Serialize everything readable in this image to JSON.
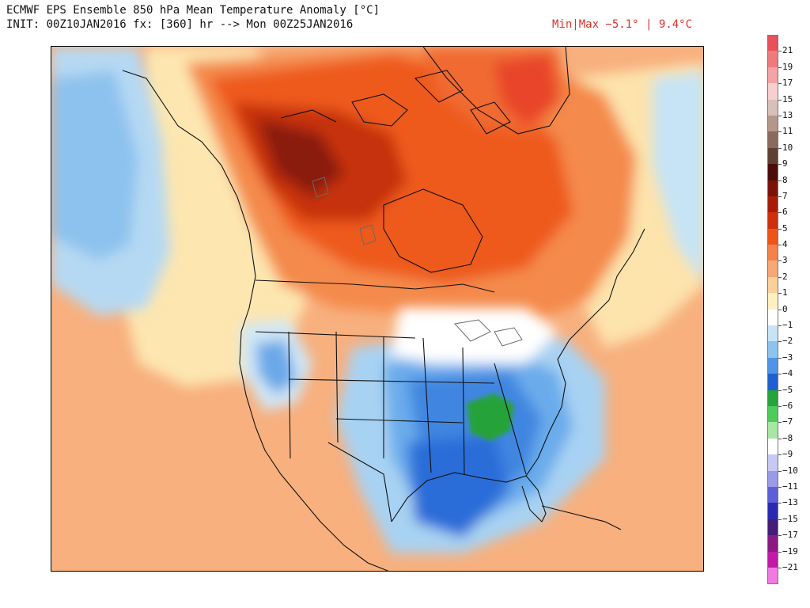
{
  "header": {
    "title_line1": "ECMWF EPS Ensemble 850 hPa Mean Temperature Anomaly [°C]",
    "title_line2": "INIT: 00Z10JAN2016 fx: [360] hr --> Mon 00Z25JAN2016",
    "minmax": "Min|Max −5.1° | 9.4°C"
  },
  "map": {
    "region": "North America",
    "variable": "850 hPa mean temperature anomaly",
    "unit": "°C"
  },
  "legend": {
    "levels": [
      {
        "label": "21",
        "color": "#e8505a"
      },
      {
        "label": "19",
        "color": "#ee7a7e"
      },
      {
        "label": "17",
        "color": "#f4a2a4"
      },
      {
        "label": "15",
        "color": "#f6d0ce"
      },
      {
        "label": "13",
        "color": "#d8c0b8"
      },
      {
        "label": "11",
        "color": "#b4978a"
      },
      {
        "label": "10",
        "color": "#8a6a5c"
      },
      {
        "label": "9",
        "color": "#5e3f34"
      },
      {
        "label": "8",
        "color": "#4a0d08"
      },
      {
        "label": "7",
        "color": "#7a1208"
      },
      {
        "label": "6",
        "color": "#a61c08"
      },
      {
        "label": "5",
        "color": "#cf300c"
      },
      {
        "label": "4",
        "color": "#ee5418"
      },
      {
        "label": "3",
        "color": "#f4824a"
      },
      {
        "label": "2",
        "color": "#f7a874"
      },
      {
        "label": "1",
        "color": "#fbd098"
      },
      {
        "label": "0",
        "color": "#fff1bf"
      },
      {
        "label": "−1",
        "color": "#ffffff"
      },
      {
        "label": "−2",
        "color": "#c6e4f5"
      },
      {
        "label": "−3",
        "color": "#8cc4ee"
      },
      {
        "label": "−4",
        "color": "#4f94e6"
      },
      {
        "label": "−5",
        "color": "#1f5fcf"
      },
      {
        "label": "−6",
        "color": "#25a33c"
      },
      {
        "label": "−7",
        "color": "#4ecb5a"
      },
      {
        "label": "−8",
        "color": "#a8e6a4"
      },
      {
        "label": "−9",
        "color": "#ffffff"
      },
      {
        "label": "−10",
        "color": "#c8c8f4"
      },
      {
        "label": "−11",
        "color": "#9a9aea"
      },
      {
        "label": "−13",
        "color": "#5e5ed8"
      },
      {
        "label": "−15",
        "color": "#2a2ab0"
      },
      {
        "label": "−17",
        "color": "#441c7a"
      },
      {
        "label": "−19",
        "color": "#8a1a82"
      },
      {
        "label": "−21",
        "color": "#c21aa8"
      }
    ],
    "bottom_color": "#f07ae0"
  }
}
